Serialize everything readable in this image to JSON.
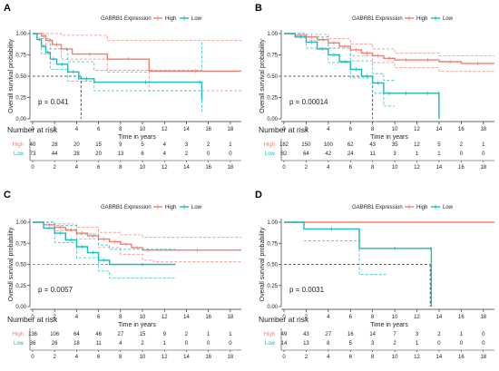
{
  "colors": {
    "high": "#f07e72",
    "low": "#1cb9bd",
    "axis": "#333333",
    "ref": "#333333"
  },
  "legend": {
    "title": "GABRB1 Expression",
    "high_label": "High",
    "low_label": "Low"
  },
  "axis_text": {
    "ylabel": "Overall survival probability",
    "xlabel": "Time in years",
    "risk_title": "Number at risk"
  },
  "chart_data": [
    {
      "type": "line",
      "panel": "A",
      "xlabel": "Time in years",
      "ylabel": "Overall survival probability",
      "xlim": [
        0,
        19
      ],
      "ylim": [
        0,
        1
      ],
      "x_ticks": [
        0,
        2,
        4,
        6,
        8,
        10,
        12,
        14,
        16,
        18
      ],
      "y_ticks": [
        0.0,
        0.25,
        0.5,
        0.75,
        1.0
      ],
      "legend": [
        "High",
        "Low"
      ],
      "p_value": "p = 0.041",
      "median_lines": [
        4.4
      ],
      "series": [
        {
          "name": "High",
          "x": [
            0,
            0.8,
            1.2,
            1.8,
            2.6,
            3.6,
            6.8,
            10.6,
            19
          ],
          "y": [
            1.0,
            0.97,
            0.92,
            0.87,
            0.82,
            0.76,
            0.7,
            0.56,
            0.56
          ]
        },
        {
          "name": "Low",
          "x": [
            0,
            0.4,
            0.8,
            1.2,
            1.6,
            2.2,
            3.2,
            4.2,
            5.6,
            15.0,
            15.4
          ],
          "y": [
            1.0,
            0.93,
            0.85,
            0.78,
            0.7,
            0.64,
            0.55,
            0.47,
            0.43,
            0.43,
            0.22
          ]
        }
      ],
      "ci": [
        {
          "name": "High upper",
          "x": [
            0,
            1.2,
            2.6,
            6.8,
            10.6,
            19
          ],
          "y": [
            1.0,
            1.0,
            0.98,
            0.92,
            0.92,
            0.92
          ]
        },
        {
          "name": "High lower",
          "x": [
            0,
            1.2,
            2.6,
            6.8,
            10.6,
            19
          ],
          "y": [
            1.0,
            0.82,
            0.7,
            0.55,
            0.33,
            0.33
          ]
        },
        {
          "name": "Low upper",
          "x": [
            0,
            0.8,
            1.6,
            3.2,
            5.6,
            15.0,
            15.4
          ],
          "y": [
            1.0,
            0.94,
            0.82,
            0.67,
            0.57,
            0.57,
            0.91
          ]
        },
        {
          "name": "Low lower",
          "x": [
            0,
            0.8,
            1.6,
            3.2,
            5.6,
            15.0,
            15.4
          ],
          "y": [
            1.0,
            0.76,
            0.58,
            0.44,
            0.33,
            0.33,
            0.07
          ]
        }
      ],
      "risk": {
        "times": [
          0,
          2,
          4,
          6,
          8,
          10,
          12,
          14,
          16,
          18
        ],
        "High": [
          40,
          28,
          20,
          15,
          9,
          5,
          4,
          3,
          2,
          1
        ],
        "Low": [
          73,
          44,
          28,
          20,
          13,
          6,
          4,
          2,
          0,
          0
        ]
      }
    },
    {
      "type": "line",
      "panel": "B",
      "xlabel": "Time in years",
      "ylabel": "Overall survival probability",
      "xlim": [
        0,
        19
      ],
      "ylim": [
        0,
        1
      ],
      "x_ticks": [
        0,
        2,
        4,
        6,
        8,
        10,
        12,
        14,
        16,
        18
      ],
      "y_ticks": [
        0.0,
        0.25,
        0.5,
        0.75,
        1.0
      ],
      "legend": [
        "High",
        "Low"
      ],
      "p_value": "p = 0.00014",
      "median_lines": [
        8.0
      ],
      "series": [
        {
          "name": "High",
          "x": [
            0,
            1,
            2,
            3,
            4,
            5,
            6,
            7,
            8,
            9,
            10,
            12,
            14,
            16,
            19
          ],
          "y": [
            1.0,
            0.98,
            0.96,
            0.93,
            0.89,
            0.85,
            0.81,
            0.77,
            0.74,
            0.71,
            0.69,
            0.69,
            0.67,
            0.65,
            0.65
          ]
        },
        {
          "name": "Low",
          "x": [
            0,
            1,
            2,
            3,
            4,
            5,
            6,
            7,
            8,
            9,
            10,
            12,
            13.9,
            14.0
          ],
          "y": [
            1.0,
            0.96,
            0.9,
            0.82,
            0.75,
            0.67,
            0.58,
            0.5,
            0.42,
            0.3,
            0.3,
            0.3,
            0.3,
            0.0
          ]
        }
      ],
      "ci": [
        {
          "name": "High upper",
          "x": [
            0,
            2,
            4,
            6,
            8,
            10,
            14,
            19
          ],
          "y": [
            1.0,
            0.99,
            0.94,
            0.88,
            0.82,
            0.77,
            0.74,
            0.74
          ]
        },
        {
          "name": "High lower",
          "x": [
            0,
            2,
            4,
            6,
            8,
            10,
            14,
            19
          ],
          "y": [
            1.0,
            0.92,
            0.83,
            0.74,
            0.66,
            0.6,
            0.56,
            0.56
          ]
        },
        {
          "name": "Low upper",
          "x": [
            0,
            2,
            4,
            6,
            8,
            9,
            10
          ],
          "y": [
            1.0,
            0.96,
            0.83,
            0.68,
            0.53,
            0.45,
            0.45
          ]
        },
        {
          "name": "Low lower",
          "x": [
            0,
            2,
            4,
            6,
            8,
            9,
            10
          ],
          "y": [
            1.0,
            0.83,
            0.66,
            0.48,
            0.3,
            0.15,
            0.15
          ]
        }
      ],
      "risk": {
        "times": [
          0,
          2,
          4,
          6,
          8,
          10,
          12,
          14,
          16,
          18
        ],
        "High": [
          182,
          150,
          100,
          62,
          43,
          35,
          12,
          5,
          2,
          1
        ],
        "Low": [
          82,
          64,
          42,
          24,
          11,
          3,
          1,
          1,
          0,
          0
        ]
      }
    },
    {
      "type": "line",
      "panel": "C",
      "xlabel": "Time in years",
      "ylabel": "Overall survival probability",
      "xlim": [
        0,
        19
      ],
      "ylim": [
        0,
        1
      ],
      "x_ticks": [
        0,
        2,
        4,
        6,
        8,
        10,
        12,
        14,
        16,
        18
      ],
      "y_ticks": [
        0.0,
        0.25,
        0.5,
        0.75,
        1.0
      ],
      "legend": [
        "High",
        "Low"
      ],
      "p_value": "p = 0.0057",
      "median_lines": [],
      "series": [
        {
          "name": "High",
          "x": [
            0,
            1,
            2,
            3,
            4,
            5,
            6,
            7,
            8,
            9,
            10,
            11,
            19
          ],
          "y": [
            1.0,
            0.97,
            0.94,
            0.91,
            0.87,
            0.84,
            0.8,
            0.77,
            0.74,
            0.7,
            0.67,
            0.67,
            0.67
          ]
        },
        {
          "name": "Low",
          "x": [
            0,
            1,
            2,
            3,
            4,
            5,
            6,
            7,
            13
          ],
          "y": [
            1.0,
            0.93,
            0.87,
            0.79,
            0.71,
            0.64,
            0.55,
            0.5,
            0.5
          ]
        }
      ],
      "ci": [
        {
          "name": "High upper",
          "x": [
            0,
            2,
            4,
            6,
            8,
            10,
            11,
            19
          ],
          "y": [
            1.0,
            0.98,
            0.94,
            0.88,
            0.85,
            0.82,
            0.82,
            0.82
          ]
        },
        {
          "name": "High lower",
          "x": [
            0,
            2,
            4,
            6,
            8,
            10,
            11,
            19
          ],
          "y": [
            1.0,
            0.9,
            0.8,
            0.7,
            0.62,
            0.55,
            0.53,
            0.53
          ]
        },
        {
          "name": "Low upper",
          "x": [
            0,
            2,
            4,
            6,
            7,
            13
          ],
          "y": [
            1.0,
            0.96,
            0.86,
            0.73,
            0.68,
            0.68
          ]
        },
        {
          "name": "Low lower",
          "x": [
            0,
            2,
            4,
            6,
            7,
            13
          ],
          "y": [
            1.0,
            0.76,
            0.58,
            0.42,
            0.34,
            0.34
          ]
        }
      ],
      "risk": {
        "times": [
          0,
          2,
          4,
          6,
          8,
          10,
          12,
          14,
          16,
          18
        ],
        "High": [
          136,
          106,
          64,
          46,
          27,
          15,
          9,
          2,
          1,
          1
        ],
        "Low": [
          36,
          26,
          18,
          11,
          4,
          2,
          1,
          0,
          0,
          0
        ]
      }
    },
    {
      "type": "line",
      "panel": "D",
      "xlabel": "Time in years",
      "ylabel": "Overall survival probability",
      "xlim": [
        0,
        19
      ],
      "ylim": [
        0,
        1
      ],
      "x_ticks": [
        0,
        2,
        4,
        6,
        8,
        10,
        12,
        14,
        16,
        18
      ],
      "y_ticks": [
        0.0,
        0.25,
        0.5,
        0.75,
        1.0
      ],
      "legend": [
        "High",
        "Low"
      ],
      "p_value": "p = 0.0031",
      "median_lines": [
        13.2
      ],
      "series": [
        {
          "name": "High",
          "x": [
            0,
            19
          ],
          "y": [
            1.0,
            1.0
          ]
        },
        {
          "name": "Low",
          "x": [
            0,
            1.8,
            6.8,
            13.2,
            13.3
          ],
          "y": [
            1.0,
            0.92,
            0.69,
            0.69,
            0.0
          ]
        }
      ],
      "ci": [
        {
          "name": "Low upper",
          "x": [
            1.8,
            6.8,
            9.2
          ],
          "y": [
            1.0,
            1.0,
            1.0
          ]
        },
        {
          "name": "Low lower",
          "x": [
            1.8,
            6.8,
            9.2
          ],
          "y": [
            0.78,
            0.38,
            0.38
          ]
        }
      ],
      "risk": {
        "times": [
          0,
          2,
          4,
          6,
          8,
          10,
          12,
          14,
          16,
          18
        ],
        "High": [
          49,
          43,
          27,
          16,
          14,
          7,
          3,
          2,
          1,
          0
        ],
        "Low": [
          14,
          13,
          8,
          5,
          3,
          2,
          1,
          0,
          0,
          0
        ]
      }
    }
  ]
}
